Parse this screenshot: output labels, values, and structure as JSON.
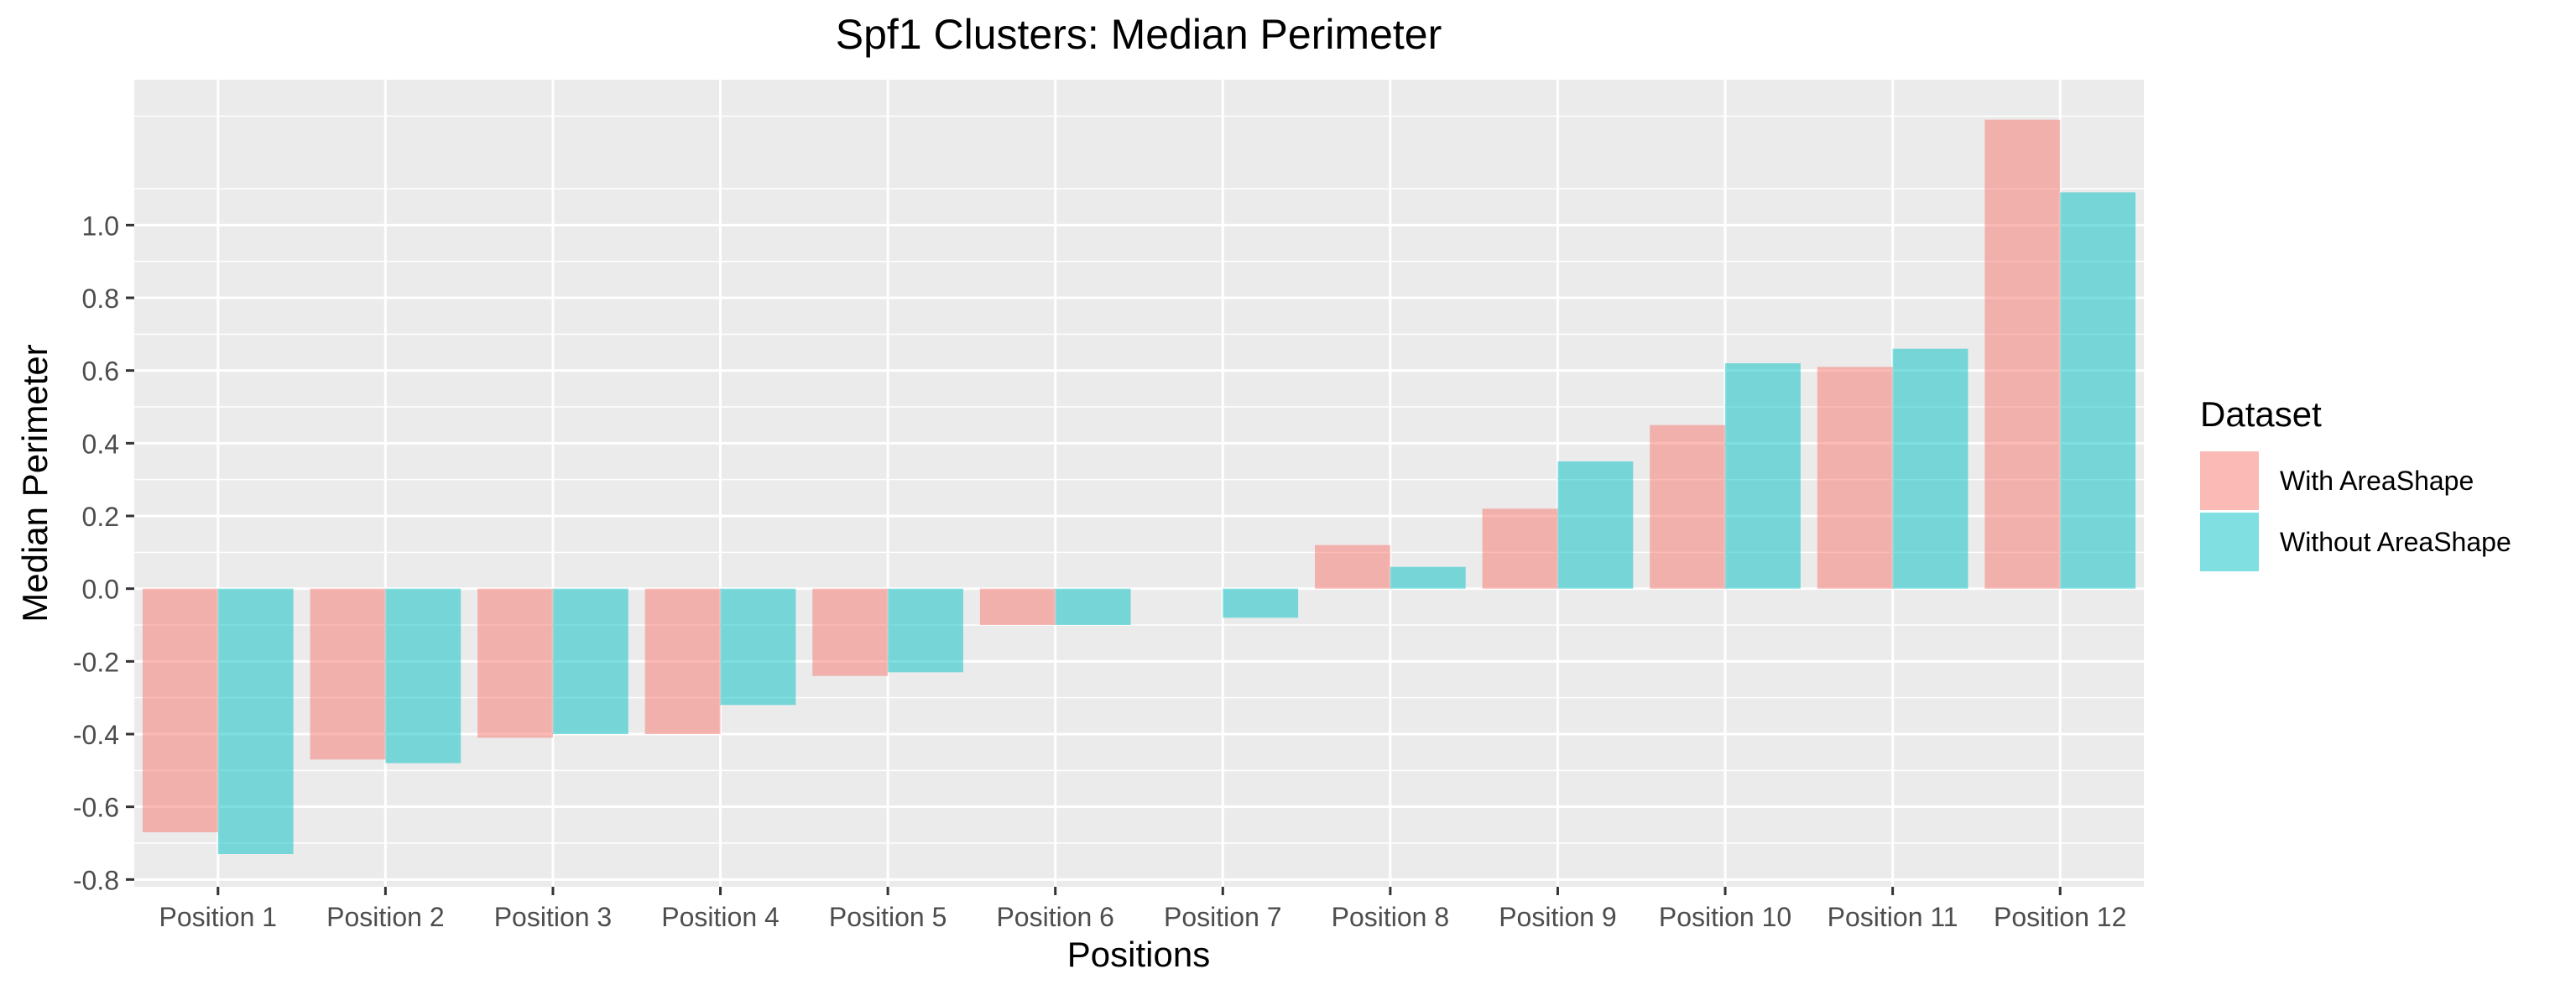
{
  "chart_data": {
    "type": "bar",
    "title": "Spf1 Clusters: Median Perimeter",
    "xlabel": "Positions",
    "ylabel": "Median Perimeter",
    "categories": [
      "Position 1",
      "Position 2",
      "Position 3",
      "Position 4",
      "Position 5",
      "Position 6",
      "Position 7",
      "Position 8",
      "Position 9",
      "Position 10",
      "Position 11",
      "Position 12"
    ],
    "series": [
      {
        "name": "With AreaShape",
        "color": "#F8766D",
        "values": [
          -0.67,
          -0.47,
          -0.41,
          -0.4,
          -0.24,
          -0.1,
          0.0,
          0.12,
          0.22,
          0.45,
          0.61,
          1.29
        ]
      },
      {
        "name": "Without AreaShape",
        "color": "#00BFC4",
        "values": [
          -0.73,
          -0.48,
          -0.4,
          -0.32,
          -0.23,
          -0.1,
          -0.08,
          0.06,
          0.35,
          0.62,
          0.66,
          1.09
        ]
      }
    ],
    "ylim": [
      -0.82,
      1.4
    ],
    "yticks": [
      -0.8,
      -0.6,
      -0.4,
      -0.2,
      0.0,
      0.2,
      0.4,
      0.6,
      0.8,
      1.0
    ],
    "ytick_labels": [
      "-0.8",
      "-0.6",
      "-0.4",
      "-0.2",
      "0.0",
      "0.2",
      "0.4",
      "0.6",
      "0.8",
      "1.0"
    ],
    "bar_opacity": 0.5,
    "grid": true,
    "panel_background": "#EBEBEB",
    "legend": {
      "title": "Dataset",
      "placement": "right"
    }
  }
}
